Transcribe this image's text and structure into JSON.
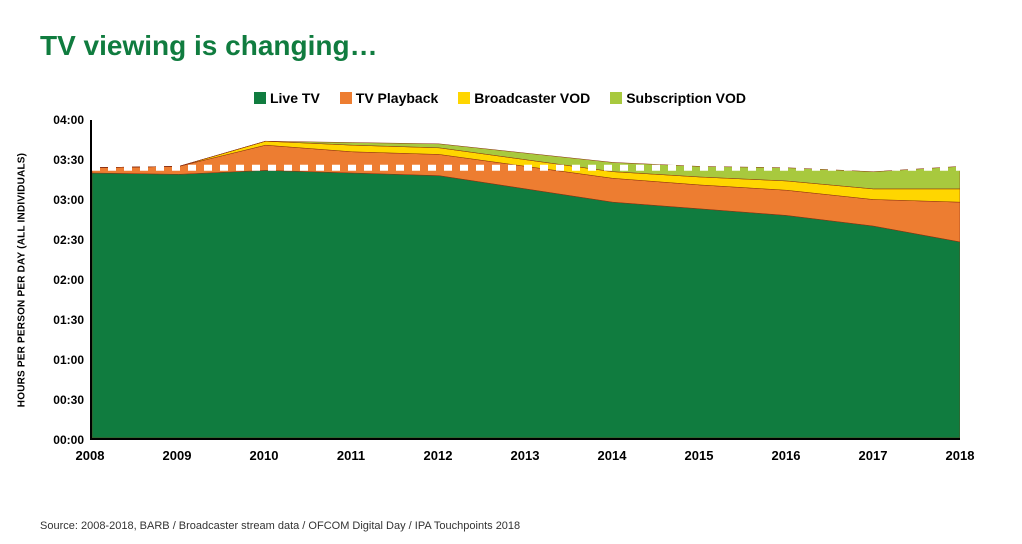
{
  "title": {
    "text": "TV viewing is changing…",
    "color": "#107c3f",
    "fontsize": 28,
    "fontweight": "bold"
  },
  "source": "Source: 2008-2018, BARB / Broadcaster stream data / OFCOM Digital Day / IPA Touchpoints 2018",
  "chart": {
    "type": "stacked-area",
    "y_axis_title": "HOURS PER PERSON PER DAY (ALL INDIVIDUALS)",
    "background_color": "#ffffff",
    "axis_color": "#000000",
    "label_fontsize": 12,
    "label_fontweight": "bold",
    "x_categories": [
      "2008",
      "2009",
      "2010",
      "2011",
      "2012",
      "2013",
      "2014",
      "2015",
      "2016",
      "2017",
      "2018"
    ],
    "y_ticks": [
      "00:00",
      "00:30",
      "01:00",
      "01:30",
      "02:00",
      "02:30",
      "03:00",
      "03:30",
      "04:00"
    ],
    "y_max_minutes": 240,
    "series": [
      {
        "name": "Live TV",
        "color": "#107c3f",
        "stroke": "#8a2d0f",
        "values_min": [
          200,
          199,
          202,
          200,
          198,
          188,
          178,
          173,
          168,
          160,
          148
        ]
      },
      {
        "name": "TV Playback",
        "color": "#ed7d31",
        "stroke": "#8a2d0f",
        "values_min": [
          4,
          6,
          19,
          16,
          16,
          17,
          18,
          18,
          19,
          20,
          30
        ]
      },
      {
        "name": "Broadcaster VOD",
        "color": "#ffd600",
        "stroke": "#8a2d0f",
        "values_min": [
          0,
          0,
          3,
          5,
          5,
          5,
          5,
          6,
          7,
          8,
          10
        ]
      },
      {
        "name": "Subscription VOD",
        "color": "#a8c93e",
        "stroke": "#8a2d0f",
        "values_min": [
          0,
          0,
          0,
          2,
          3,
          5,
          7,
          8,
          10,
          13,
          17
        ]
      }
    ],
    "reference_line": {
      "value_min": 204,
      "color": "#ffffff",
      "dash": "8 8",
      "width": 6
    },
    "legend": {
      "fontsize": 14,
      "fontweight": "bold",
      "swatch_size": 12
    }
  }
}
